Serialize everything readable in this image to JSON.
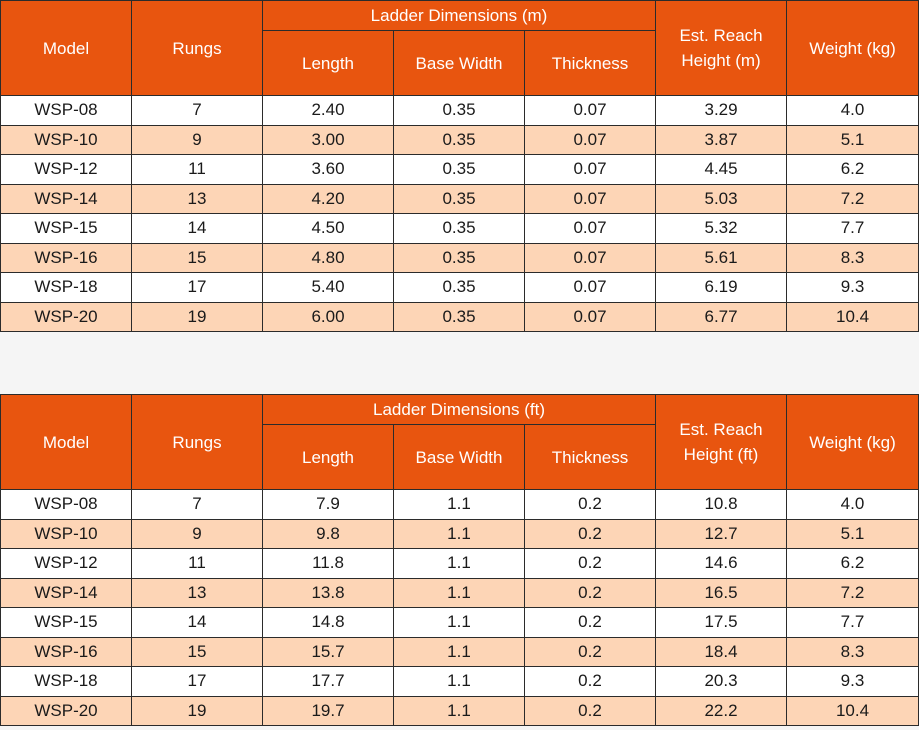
{
  "colors": {
    "header_bg": "#e8550f",
    "header_text": "#ffffff",
    "row_odd": "#ffffff",
    "row_even": "#fdd5b6",
    "border": "#2b2b2b"
  },
  "tables": [
    {
      "headers": {
        "model": "Model",
        "rungs": "Rungs",
        "dimensions_group": "Ladder Dimensions (m)",
        "length": "Length",
        "base_width": "Base Width",
        "thickness": "Thickness",
        "reach_line1": "Est. Reach",
        "reach_line2": "Height (m)",
        "weight": "Weight (kg)"
      },
      "rows": [
        [
          "WSP-08",
          "7",
          "2.40",
          "0.35",
          "0.07",
          "3.29",
          "4.0"
        ],
        [
          "WSP-10",
          "9",
          "3.00",
          "0.35",
          "0.07",
          "3.87",
          "5.1"
        ],
        [
          "WSP-12",
          "11",
          "3.60",
          "0.35",
          "0.07",
          "4.45",
          "6.2"
        ],
        [
          "WSP-14",
          "13",
          "4.20",
          "0.35",
          "0.07",
          "5.03",
          "7.2"
        ],
        [
          "WSP-15",
          "14",
          "4.50",
          "0.35",
          "0.07",
          "5.32",
          "7.7"
        ],
        [
          "WSP-16",
          "15",
          "4.80",
          "0.35",
          "0.07",
          "5.61",
          "8.3"
        ],
        [
          "WSP-18",
          "17",
          "5.40",
          "0.35",
          "0.07",
          "6.19",
          "9.3"
        ],
        [
          "WSP-20",
          "19",
          "6.00",
          "0.35",
          "0.07",
          "6.77",
          "10.4"
        ]
      ]
    },
    {
      "headers": {
        "model": "Model",
        "rungs": "Rungs",
        "dimensions_group": "Ladder Dimensions (ft)",
        "length": "Length",
        "base_width": "Base Width",
        "thickness": "Thickness",
        "reach_line1": "Est. Reach",
        "reach_line2": "Height (ft)",
        "weight": "Weight (kg)"
      },
      "rows": [
        [
          "WSP-08",
          "7",
          "7.9",
          "1.1",
          "0.2",
          "10.8",
          "4.0"
        ],
        [
          "WSP-10",
          "9",
          "9.8",
          "1.1",
          "0.2",
          "12.7",
          "5.1"
        ],
        [
          "WSP-12",
          "11",
          "11.8",
          "1.1",
          "0.2",
          "14.6",
          "6.2"
        ],
        [
          "WSP-14",
          "13",
          "13.8",
          "1.1",
          "0.2",
          "16.5",
          "7.2"
        ],
        [
          "WSP-15",
          "14",
          "14.8",
          "1.1",
          "0.2",
          "17.5",
          "7.7"
        ],
        [
          "WSP-16",
          "15",
          "15.7",
          "1.1",
          "0.2",
          "18.4",
          "8.3"
        ],
        [
          "WSP-18",
          "17",
          "17.7",
          "1.1",
          "0.2",
          "20.3",
          "9.3"
        ],
        [
          "WSP-20",
          "19",
          "19.7",
          "1.1",
          "0.2",
          "22.2",
          "10.4"
        ]
      ]
    }
  ]
}
